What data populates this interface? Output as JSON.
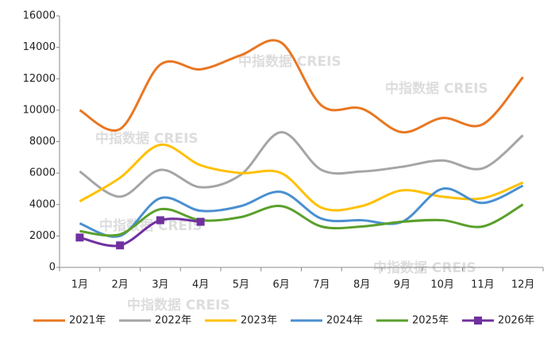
{
  "chart_data": {
    "type": "line",
    "watermark": "中指数据 CREIS",
    "categories": [
      "1月",
      "2月",
      "3月",
      "4月",
      "5月",
      "6月",
      "7月",
      "8月",
      "9月",
      "10月",
      "11月",
      "12月"
    ],
    "series": [
      {
        "name": "2021年",
        "color": "#e87722",
        "values": [
          10000,
          8800,
          12900,
          12600,
          13500,
          14300,
          10300,
          10100,
          8600,
          9500,
          9100,
          12100
        ]
      },
      {
        "name": "2022年",
        "color": "#a5a5a5",
        "values": [
          6100,
          4500,
          6200,
          5100,
          5900,
          8600,
          6200,
          6100,
          6400,
          6800,
          6300,
          8400
        ]
      },
      {
        "name": "2023年",
        "color": "#ffc000",
        "values": [
          4200,
          5700,
          7800,
          6500,
          6000,
          6000,
          3800,
          3900,
          4900,
          4500,
          4400,
          5400
        ]
      },
      {
        "name": "2024年",
        "color": "#4a8fd0",
        "values": [
          2800,
          2000,
          4400,
          3600,
          3900,
          4800,
          3100,
          3000,
          2900,
          5000,
          4100,
          5200
        ]
      },
      {
        "name": "2025年",
        "color": "#5aa02c",
        "values": [
          2300,
          2100,
          3700,
          3000,
          3200,
          3900,
          2600,
          2600,
          2900,
          3000,
          2600,
          4000
        ]
      },
      {
        "name": "2026年",
        "color": "#7030a0",
        "values": [
          1900,
          1400,
          3000,
          2900,
          null,
          null,
          null,
          null,
          null,
          null,
          null,
          null
        ],
        "marker": "square"
      }
    ],
    "ylim": [
      0,
      16000
    ],
    "yticks": [
      0,
      2000,
      4000,
      6000,
      8000,
      10000,
      12000,
      14000,
      16000
    ],
    "grid": false,
    "legend": "bottom"
  }
}
